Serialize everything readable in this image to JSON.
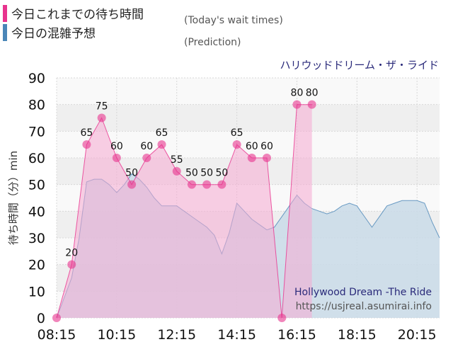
{
  "legend": {
    "today_label": "今日これまでの待ち時間",
    "today_note": "(Today's wait times)",
    "prediction_label": "今日の混雑予想",
    "prediction_note": "(Prediction)"
  },
  "colors": {
    "today": "#e8338e",
    "today_fill": "#f6a9d2",
    "prediction": "#4a86b8",
    "prediction_fill": "#c9dbe8",
    "title_color": "#2a2a7a"
  },
  "chart_data": {
    "type": "area",
    "title": "ハリウッドドリーム・ザ・ライド",
    "subtitle": "Hollywood Dream -The Ride",
    "source": "https://usjreal.asumirai.info",
    "ylabel": "待ち時間（分）min",
    "ylim": [
      0,
      90
    ],
    "yticks": [
      0,
      10,
      20,
      30,
      40,
      50,
      60,
      70,
      80,
      90
    ],
    "xlim": [
      "08:15",
      "21:00"
    ],
    "xticks": [
      "08:15",
      "10:15",
      "12:15",
      "14:15",
      "16:15",
      "18:15",
      "20:15"
    ],
    "series": [
      {
        "name": "今日の混雑予想",
        "points": [
          [
            "08:15",
            0
          ],
          [
            "08:45",
            15
          ],
          [
            "09:00",
            30
          ],
          [
            "09:15",
            51
          ],
          [
            "09:30",
            52
          ],
          [
            "09:45",
            52
          ],
          [
            "10:00",
            50
          ],
          [
            "10:15",
            47
          ],
          [
            "10:30",
            50
          ],
          [
            "10:45",
            54
          ],
          [
            "11:00",
            52
          ],
          [
            "11:15",
            49
          ],
          [
            "11:30",
            45
          ],
          [
            "11:45",
            42
          ],
          [
            "12:00",
            42
          ],
          [
            "12:15",
            42
          ],
          [
            "12:30",
            40
          ],
          [
            "12:45",
            38
          ],
          [
            "13:00",
            36
          ],
          [
            "13:15",
            34
          ],
          [
            "13:30",
            31
          ],
          [
            "13:45",
            24
          ],
          [
            "14:00",
            32
          ],
          [
            "14:15",
            43
          ],
          [
            "14:30",
            40
          ],
          [
            "14:45",
            37
          ],
          [
            "15:00",
            35
          ],
          [
            "15:15",
            33
          ],
          [
            "15:30",
            34
          ],
          [
            "15:45",
            38
          ],
          [
            "16:00",
            42
          ],
          [
            "16:15",
            46
          ],
          [
            "16:30",
            43
          ],
          [
            "16:45",
            41
          ],
          [
            "17:00",
            40
          ],
          [
            "17:15",
            39
          ],
          [
            "17:30",
            40
          ],
          [
            "17:45",
            42
          ],
          [
            "18:00",
            43
          ],
          [
            "18:15",
            42
          ],
          [
            "18:30",
            38
          ],
          [
            "18:45",
            34
          ],
          [
            "19:00",
            38
          ],
          [
            "19:15",
            42
          ],
          [
            "19:30",
            43
          ],
          [
            "19:45",
            44
          ],
          [
            "20:00",
            44
          ],
          [
            "20:15",
            44
          ],
          [
            "20:30",
            43
          ],
          [
            "20:45",
            36
          ],
          [
            "21:00",
            30
          ]
        ]
      },
      {
        "name": "今日これまでの待ち時間",
        "points": [
          [
            "08:15",
            0
          ],
          [
            "08:45",
            20
          ],
          [
            "09:15",
            65
          ],
          [
            "09:45",
            75
          ],
          [
            "10:15",
            60
          ],
          [
            "10:45",
            50
          ],
          [
            "11:15",
            60
          ],
          [
            "11:45",
            65
          ],
          [
            "12:15",
            55
          ],
          [
            "12:45",
            50
          ],
          [
            "13:15",
            50
          ],
          [
            "13:45",
            50
          ],
          [
            "14:15",
            65
          ],
          [
            "14:45",
            60
          ],
          [
            "15:15",
            60
          ],
          [
            "15:45",
            0
          ],
          [
            "16:15",
            80
          ],
          [
            "16:45",
            80
          ]
        ],
        "labels": [
          "",
          "20",
          "65",
          "75",
          "60",
          "50",
          "60",
          "65",
          "55",
          "50",
          "50",
          "50",
          "65",
          "60",
          "60",
          "",
          "80",
          "80"
        ]
      }
    ],
    "grid": true
  }
}
